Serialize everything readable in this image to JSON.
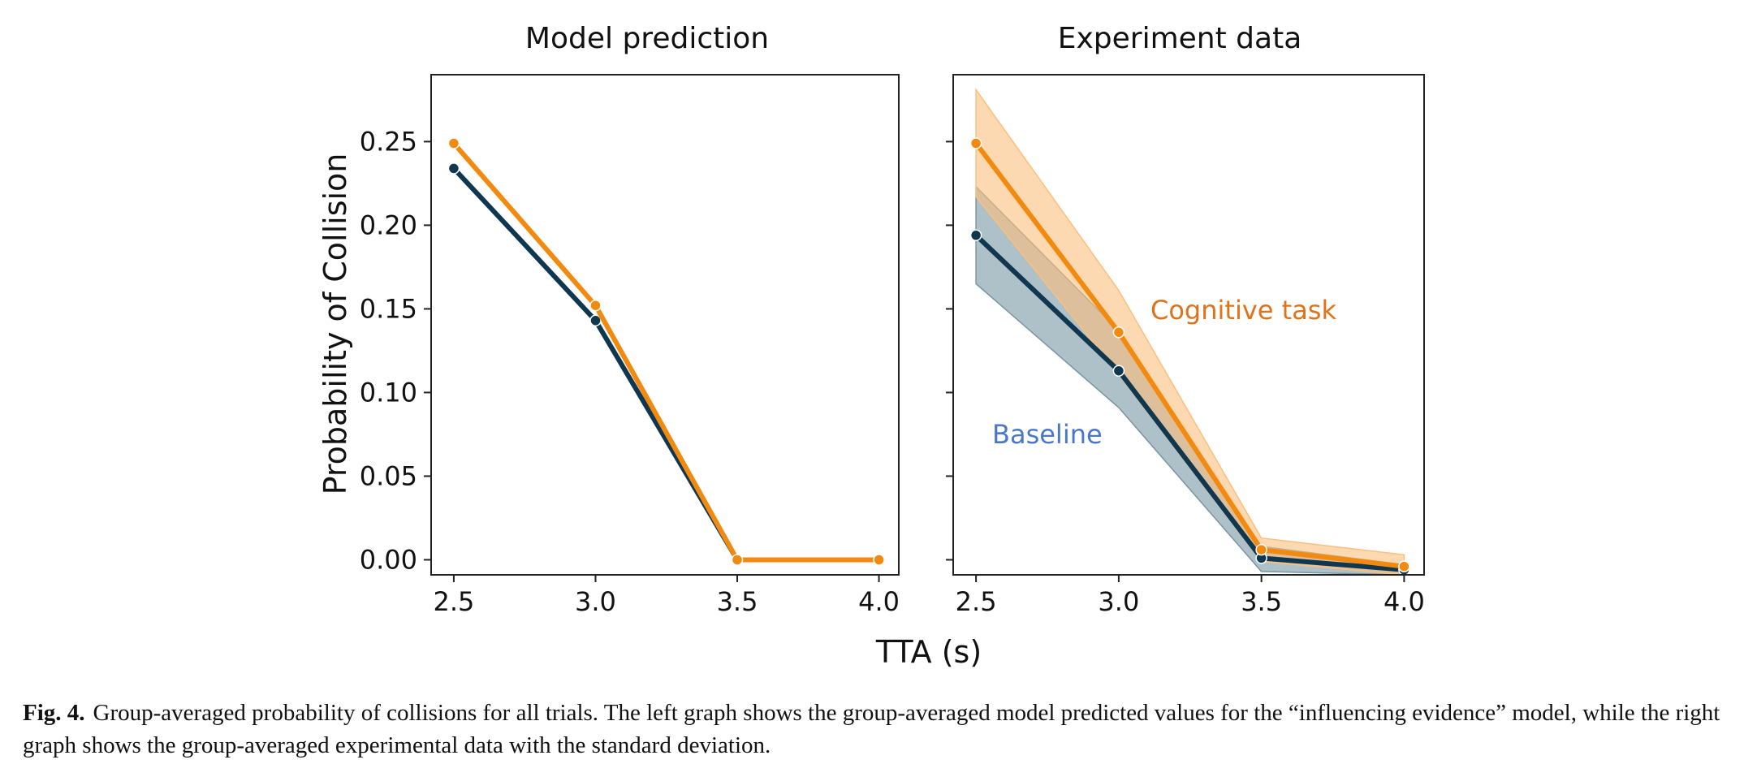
{
  "chart_data": [
    {
      "type": "line",
      "title": "Model prediction",
      "xlabel": "TTA (s)",
      "ylabel": "Probability of Collision",
      "x": [
        2.5,
        3.0,
        3.5,
        4.0
      ],
      "xlim": [
        2.42,
        4.07
      ],
      "ylim": [
        -0.009,
        0.29
      ],
      "xticks": [
        "2.5",
        "3.0",
        "3.5",
        "4.0"
      ],
      "yticks": [
        "0.00",
        "0.05",
        "0.10",
        "0.15",
        "0.20",
        "0.25"
      ],
      "series": [
        {
          "name": "Baseline",
          "color": "#0f3850",
          "values": [
            0.234,
            0.143,
            0.0,
            0.0
          ]
        },
        {
          "name": "Cognitive task",
          "color": "#f28a10",
          "values": [
            0.249,
            0.152,
            0.0,
            0.0
          ]
        }
      ]
    },
    {
      "type": "line",
      "title": "Experiment data",
      "xlabel": "TTA (s)",
      "ylabel": "",
      "x": [
        2.5,
        3.0,
        3.5,
        4.0
      ],
      "xlim": [
        2.42,
        4.07
      ],
      "ylim": [
        -0.009,
        0.29
      ],
      "xticks": [
        "2.5",
        "3.0",
        "3.5",
        "4.0"
      ],
      "yticks": [],
      "series": [
        {
          "name": "Baseline",
          "color": "#0f3850",
          "band_color": "#7896a3",
          "values": [
            0.194,
            0.113,
            0.001,
            -0.006
          ],
          "upper": [
            0.223,
            0.137,
            0.008,
            -0.003
          ],
          "lower": [
            0.165,
            0.091,
            -0.007,
            -0.009
          ]
        },
        {
          "name": "Cognitive task",
          "color": "#f28a10",
          "band_color": "#fbbf7d",
          "values": [
            0.249,
            0.136,
            0.006,
            -0.004
          ],
          "upper": [
            0.281,
            0.161,
            0.013,
            0.003
          ],
          "lower": [
            0.217,
            0.111,
            -0.001,
            -0.009
          ]
        }
      ],
      "annotations": [
        {
          "text": "Cognitive task",
          "color": "#e0731a"
        },
        {
          "text": "Baseline",
          "color": "#4a78c8"
        }
      ]
    }
  ],
  "shared_xlabel": "TTA (s)",
  "caption": {
    "label": "Fig. 4.",
    "text": "Group-averaged probability of collisions for all trials. The left graph shows the group-averaged model predicted values for the “influencing evidence” model, while the right graph shows the group-averaged experimental data with the standard deviation."
  }
}
